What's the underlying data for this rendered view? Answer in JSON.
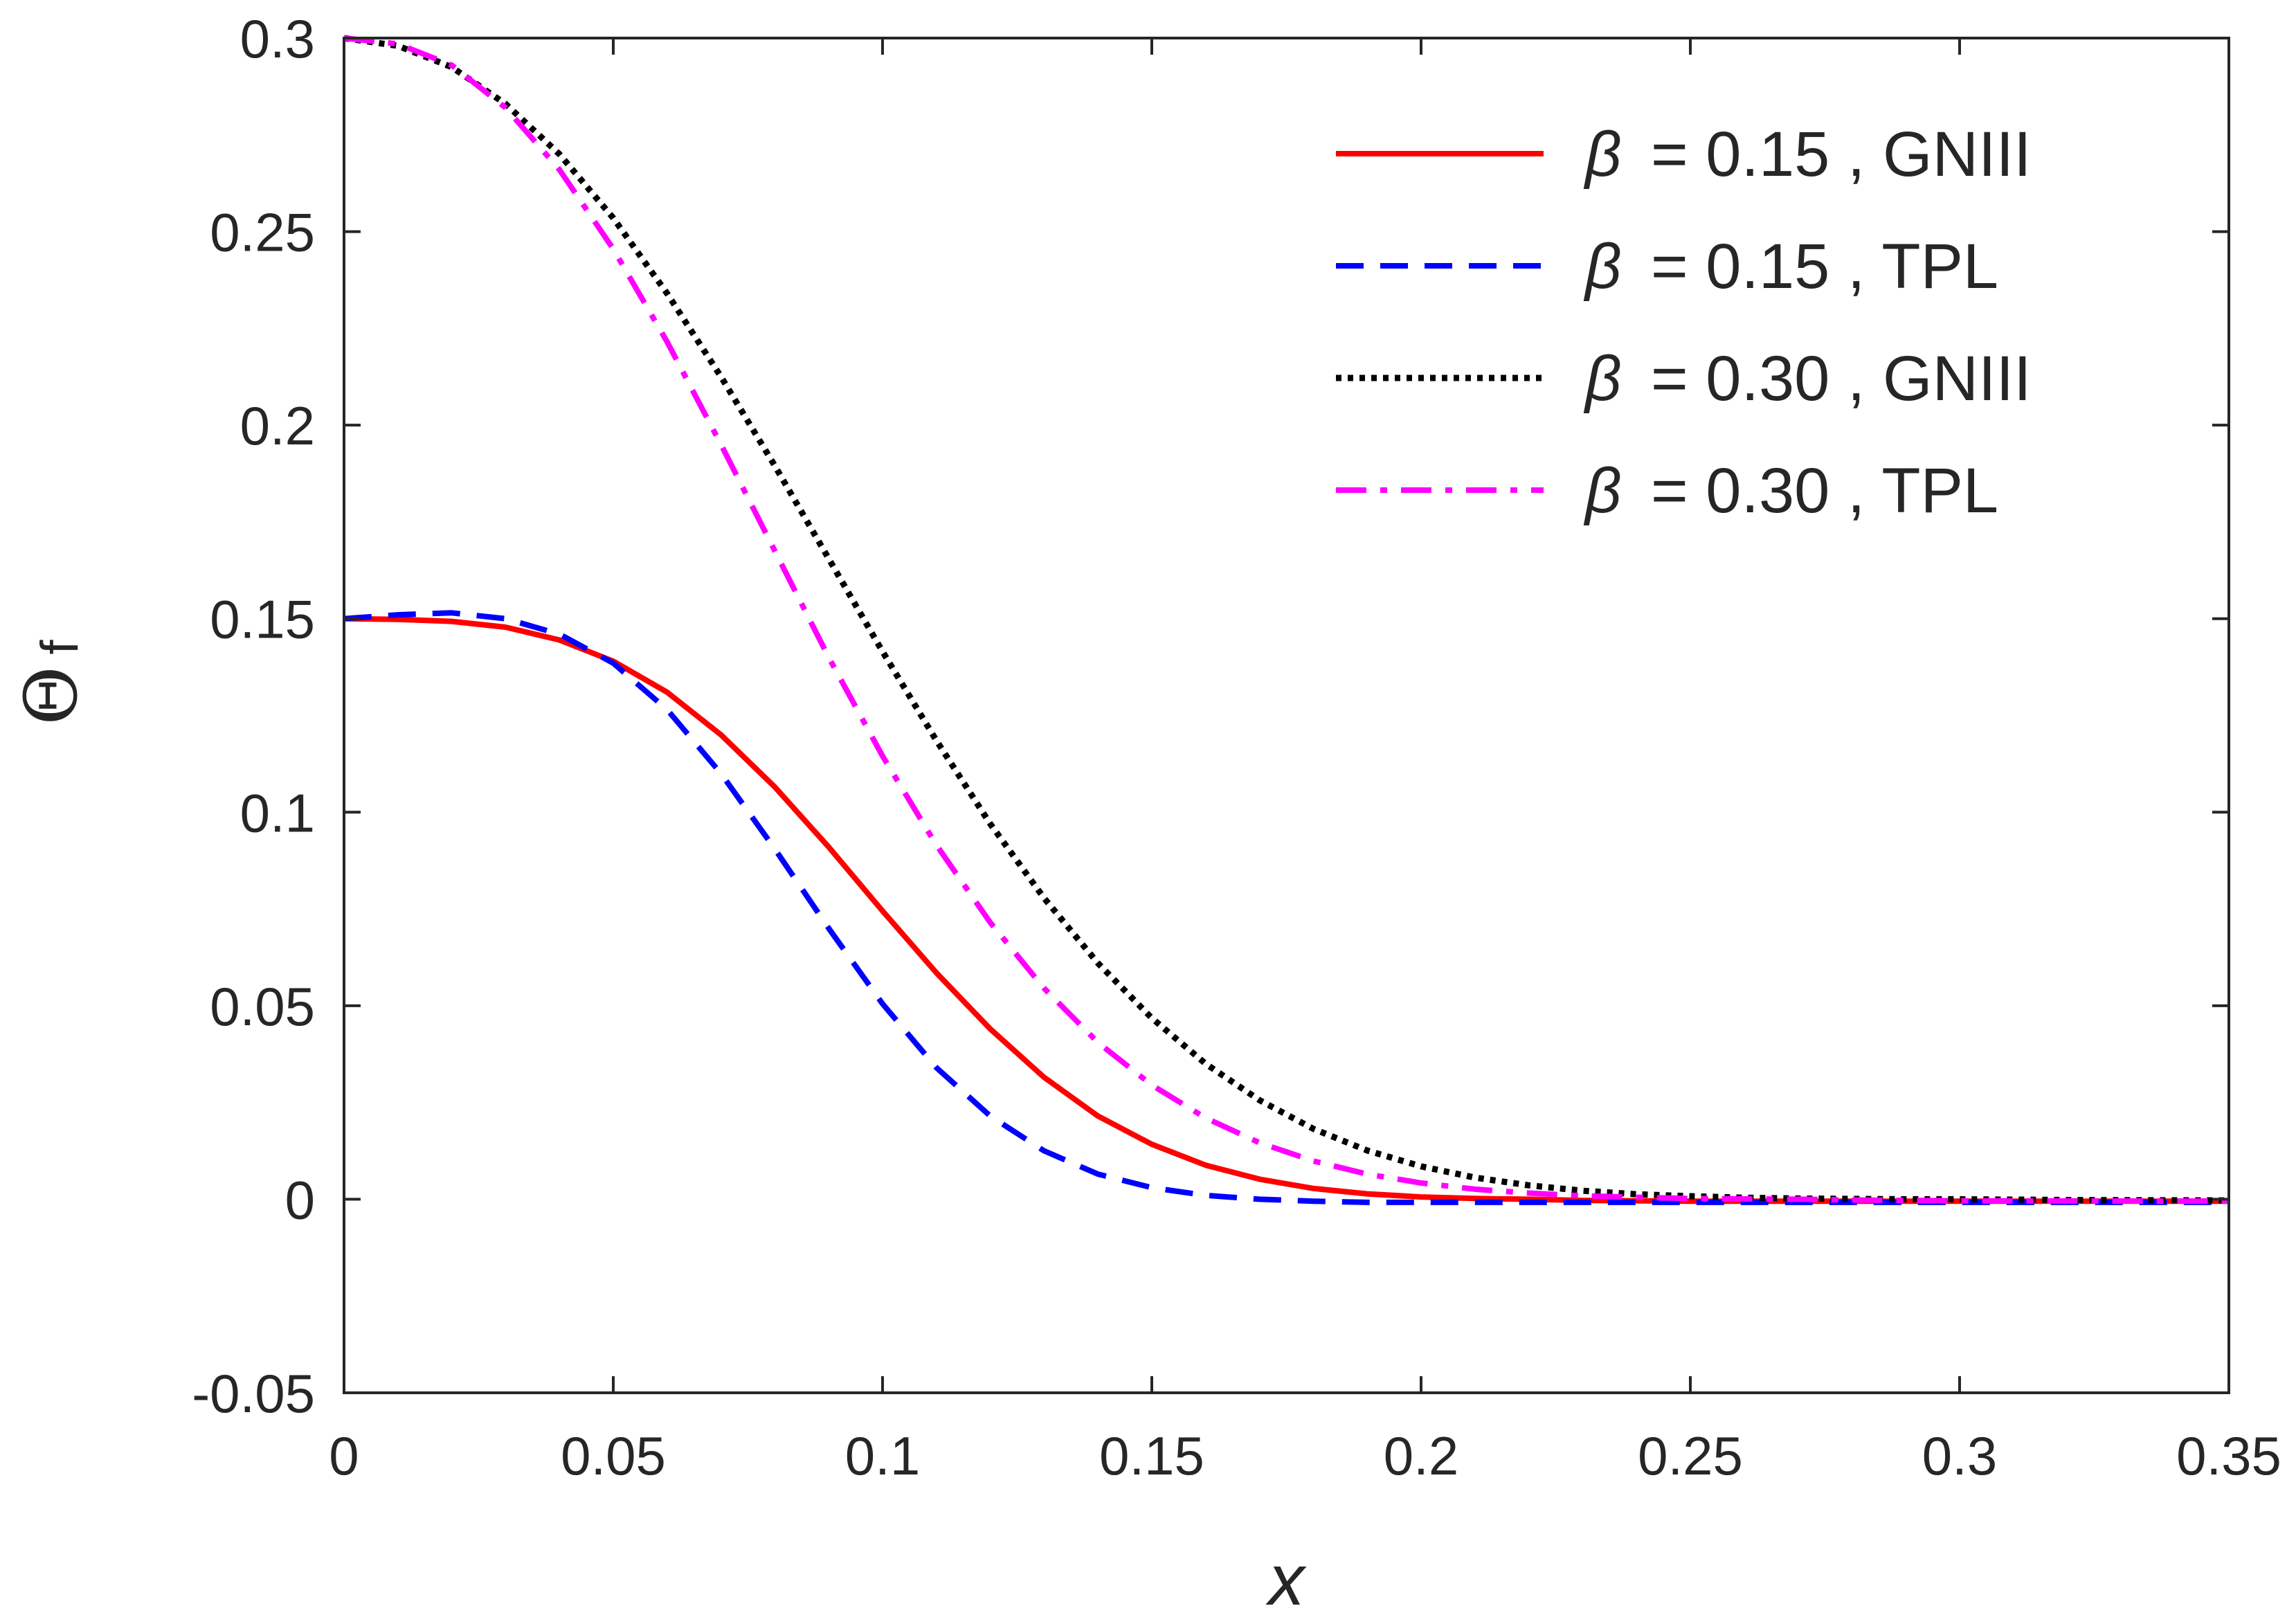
{
  "chart_data": {
    "type": "line",
    "title": "",
    "xlabel": "x",
    "ylabel": "Θ",
    "ylabel_superscript": "f",
    "xlim": [
      0,
      0.35
    ],
    "ylim": [
      -0.05,
      0.3
    ],
    "xticks": [
      0,
      0.05,
      0.1,
      0.15,
      0.2,
      0.25,
      0.3,
      0.35
    ],
    "xtick_labels": [
      "0",
      "0.05",
      "0.1",
      "0.15",
      "0.2",
      "0.25",
      "0.3",
      "0.35"
    ],
    "yticks": [
      -0.05,
      0,
      0.05,
      0.1,
      0.15,
      0.2,
      0.25,
      0.3
    ],
    "ytick_labels": [
      "-0.05",
      "0",
      "0.05",
      "0.1",
      "0.15",
      "0.2",
      "0.25",
      "0.3"
    ],
    "grid": false,
    "legend_position": "top-right",
    "series": [
      {
        "name": "β = 0.15 , GNIII",
        "legend_symbol": "β",
        "legend_text": "= 0.15 , GNIII",
        "color": "#ff0000",
        "style": "solid",
        "x": [
          0,
          0.01,
          0.02,
          0.03,
          0.04,
          0.05,
          0.06,
          0.07,
          0.08,
          0.09,
          0.1,
          0.11,
          0.12,
          0.13,
          0.14,
          0.15,
          0.16,
          0.17,
          0.18,
          0.19,
          0.2,
          0.21,
          0.22,
          0.23,
          0.25,
          0.27,
          0.3,
          0.33,
          0.35
        ],
        "y": [
          0.15,
          0.1498,
          0.1493,
          0.1478,
          0.1445,
          0.139,
          0.131,
          0.12,
          0.1065,
          0.091,
          0.0745,
          0.0585,
          0.044,
          0.0315,
          0.0215,
          0.0142,
          0.0088,
          0.0052,
          0.0028,
          0.0014,
          0.0006,
          0.0002,
          0.0,
          -0.0003,
          -0.0005,
          -0.0005,
          -0.0005,
          -0.0005,
          -0.0005
        ]
      },
      {
        "name": "β = 0.15 , TPL",
        "legend_symbol": "β",
        "legend_text": "= 0.15 , TPL",
        "color": "#0000ff",
        "style": "dashed",
        "x": [
          0,
          0.01,
          0.02,
          0.03,
          0.04,
          0.05,
          0.06,
          0.07,
          0.08,
          0.09,
          0.1,
          0.11,
          0.12,
          0.13,
          0.14,
          0.15,
          0.16,
          0.17,
          0.18,
          0.19,
          0.2,
          0.22,
          0.25,
          0.3,
          0.35
        ],
        "y": [
          0.15,
          0.151,
          0.1515,
          0.15,
          0.146,
          0.1385,
          0.1265,
          0.11,
          0.0905,
          0.07,
          0.0505,
          0.034,
          0.0215,
          0.0125,
          0.0065,
          0.003,
          0.001,
          0.0,
          -0.0005,
          -0.0008,
          -0.0008,
          -0.0008,
          -0.0008,
          -0.0008,
          -0.0008
        ]
      },
      {
        "name": "β = 0.30 , GNIII",
        "legend_symbol": "β",
        "legend_text": "= 0.30 , GNIII",
        "color": "#000000",
        "style": "dotted",
        "x": [
          0,
          0.01,
          0.02,
          0.03,
          0.04,
          0.05,
          0.06,
          0.07,
          0.08,
          0.09,
          0.1,
          0.11,
          0.12,
          0.13,
          0.14,
          0.15,
          0.16,
          0.17,
          0.18,
          0.19,
          0.2,
          0.21,
          0.22,
          0.23,
          0.24,
          0.25,
          0.26,
          0.27,
          0.28,
          0.29,
          0.3,
          0.32,
          0.35
        ],
        "y": [
          0.3,
          0.298,
          0.2925,
          0.283,
          0.27,
          0.2535,
          0.234,
          0.2125,
          0.1895,
          0.1655,
          0.1415,
          0.1185,
          0.097,
          0.0778,
          0.061,
          0.0468,
          0.035,
          0.0256,
          0.0182,
          0.0126,
          0.0085,
          0.0056,
          0.0036,
          0.0022,
          0.0013,
          0.0008,
          0.0004,
          0.0002,
          0.0001,
          0.0,
          0.0,
          -0.0002,
          -0.0003
        ]
      },
      {
        "name": "β = 0.30 , TPL",
        "legend_symbol": "β",
        "legend_text": "= 0.30 , TPL",
        "color": "#ff00ff",
        "style": "dashdot",
        "x": [
          0,
          0.01,
          0.02,
          0.03,
          0.04,
          0.05,
          0.06,
          0.07,
          0.08,
          0.09,
          0.1,
          0.11,
          0.12,
          0.13,
          0.14,
          0.15,
          0.16,
          0.17,
          0.18,
          0.19,
          0.2,
          0.21,
          0.22,
          0.23,
          0.24,
          0.25,
          0.26,
          0.27,
          0.28,
          0.3,
          0.35
        ],
        "y": [
          0.3,
          0.2985,
          0.293,
          0.282,
          0.266,
          0.2455,
          0.2215,
          0.195,
          0.1675,
          0.14,
          0.1145,
          0.0915,
          0.0715,
          0.0545,
          0.0405,
          0.0295,
          0.021,
          0.0146,
          0.0099,
          0.0065,
          0.0042,
          0.0026,
          0.0016,
          0.0009,
          0.0005,
          0.0002,
          0.0001,
          0.0,
          -0.0002,
          -0.0004,
          -0.0005
        ]
      }
    ]
  }
}
